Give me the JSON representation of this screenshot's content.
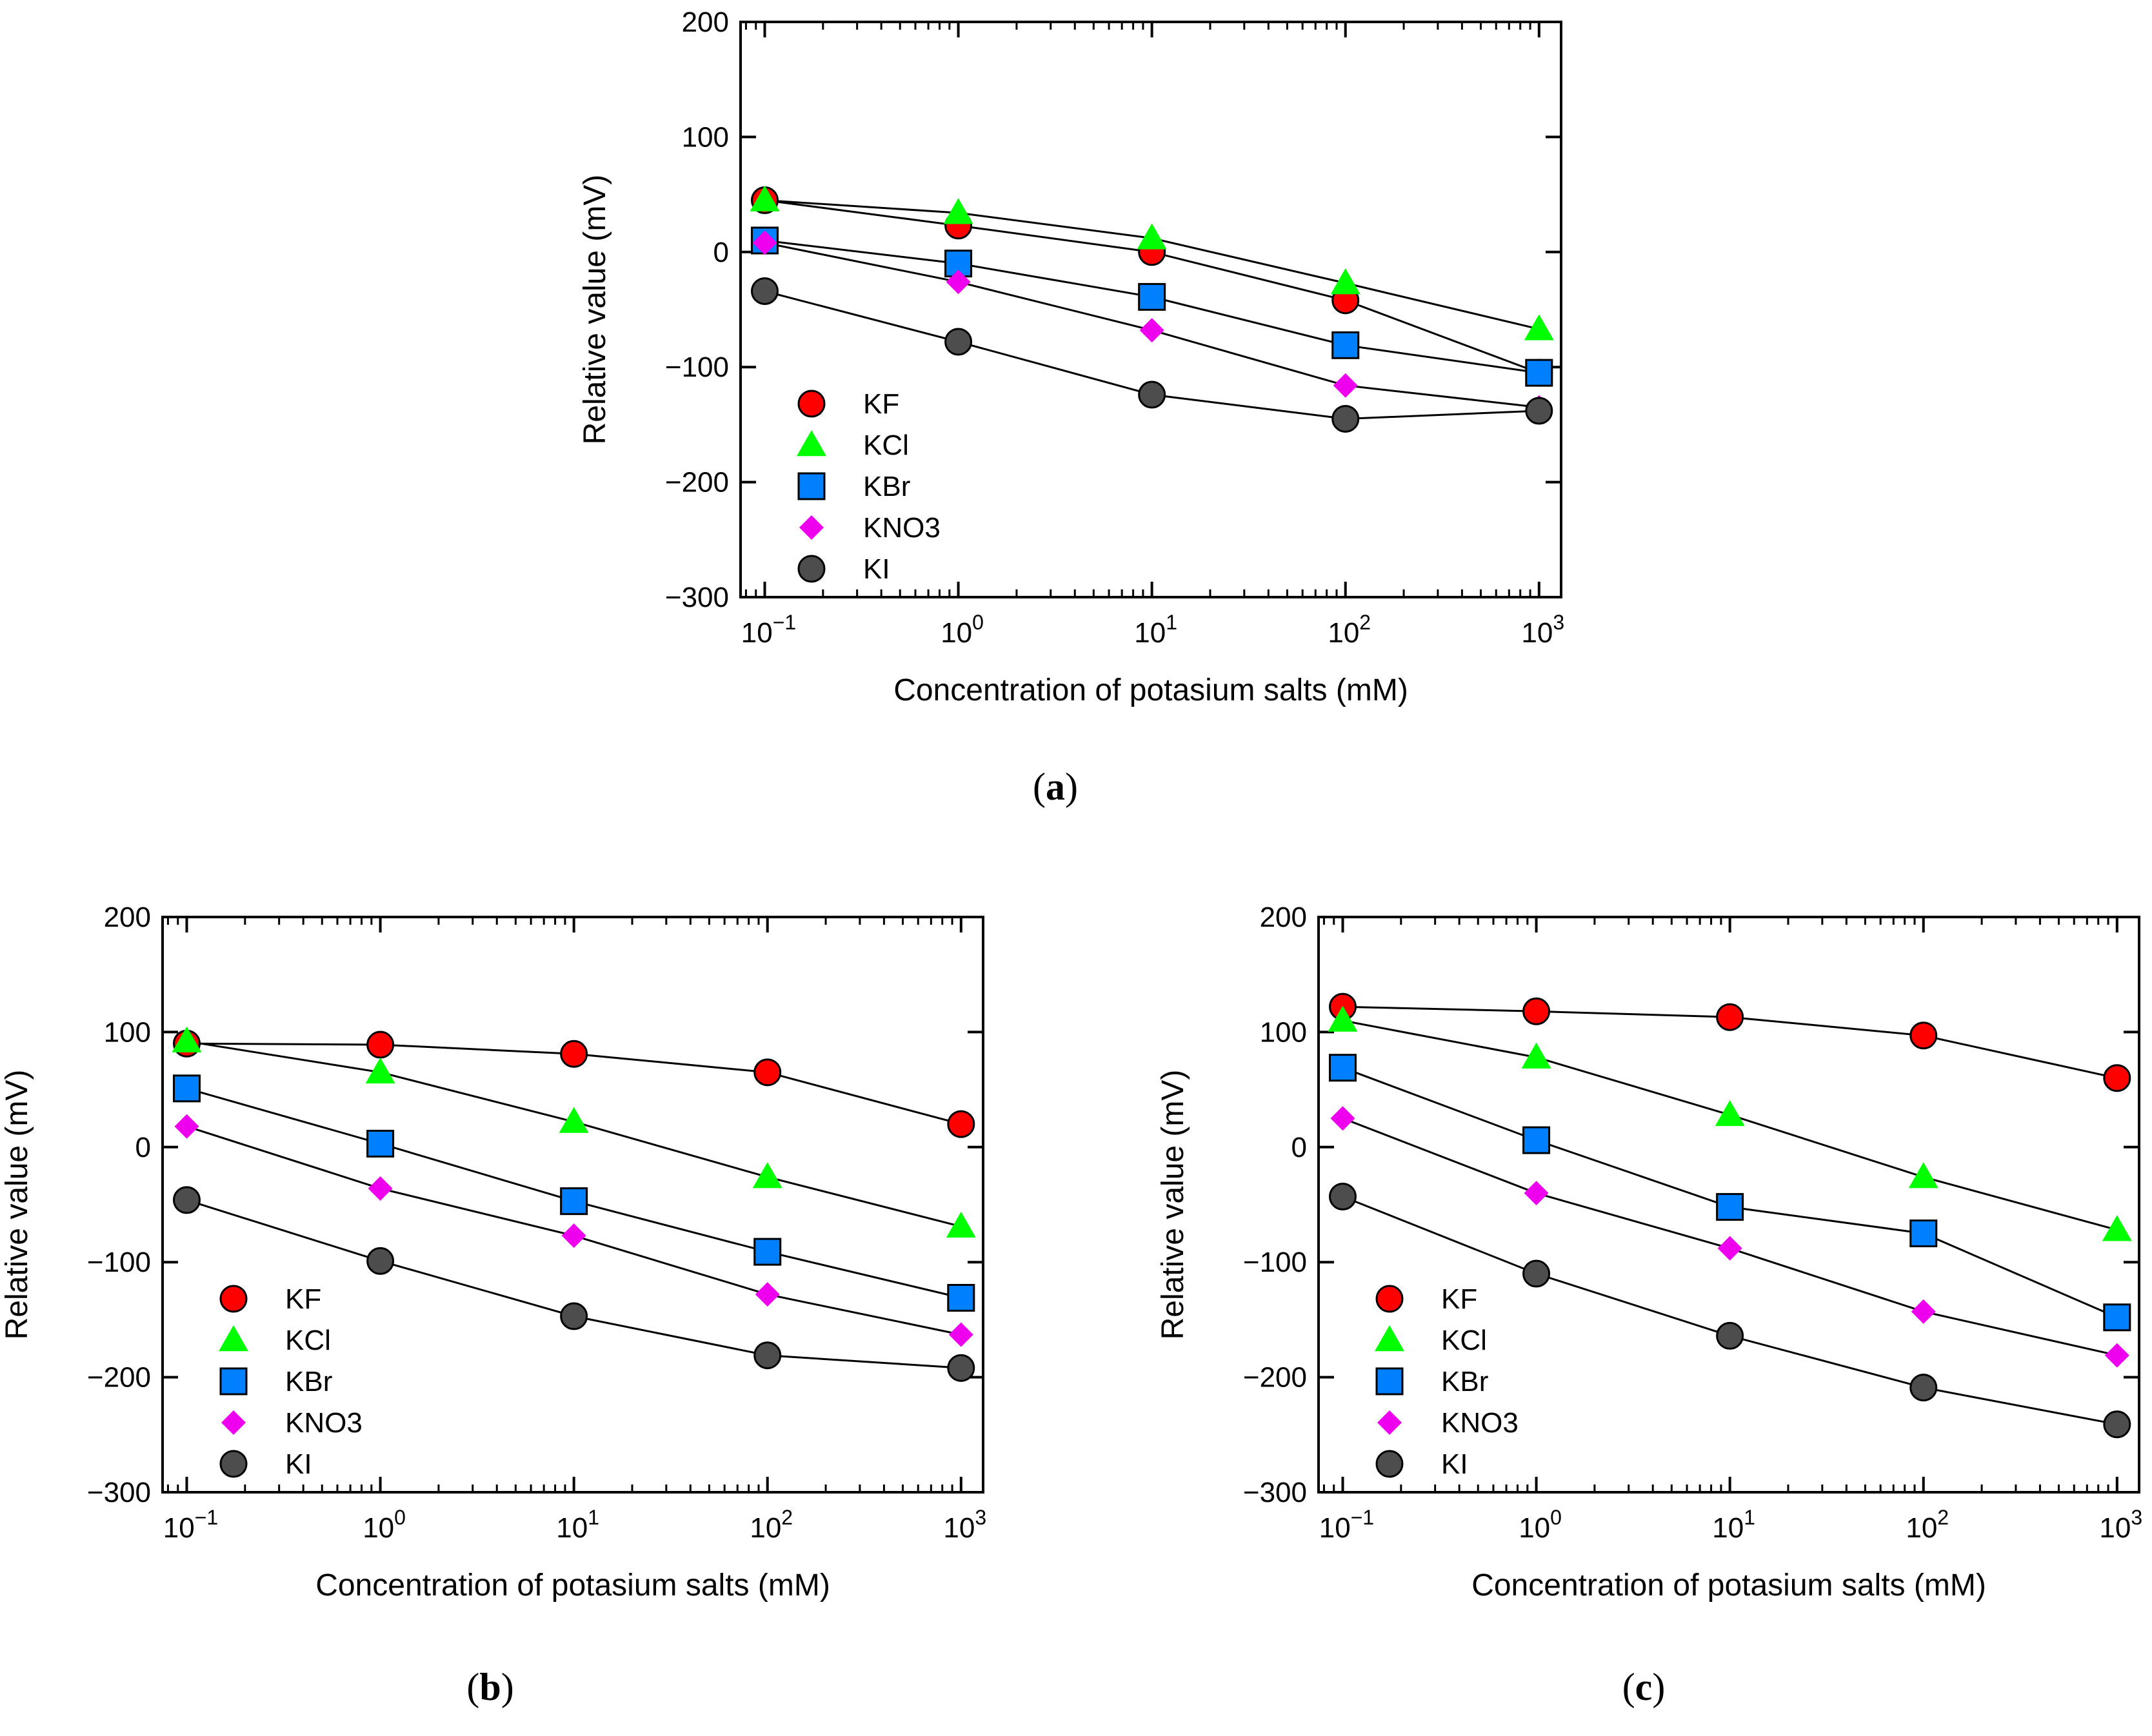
{
  "figure": {
    "panel_labels": [
      "(a)",
      "(b)",
      "(c)"
    ]
  },
  "series_styles": [
    {
      "name": "KF",
      "marker": "circle",
      "color": "#ff0000"
    },
    {
      "name": "KCl",
      "marker": "triangle",
      "color": "#00ff00"
    },
    {
      "name": "KBr",
      "marker": "square",
      "color": "#0080ff"
    },
    {
      "name": "KNO3",
      "marker": "diamond",
      "color": "#ee00ee"
    },
    {
      "name": "KI",
      "marker": "circle",
      "color": "#4d4d4d"
    }
  ],
  "chart_data": [
    {
      "type": "scatter",
      "panel": "(a)",
      "title": "",
      "xlabel": "Concentration of potasium salts (mM)",
      "ylabel": "Relative value (mV)",
      "xscale": "log",
      "x": [
        0.1,
        1,
        10,
        100,
        1000
      ],
      "x_tick_labels": [
        "10",
        "10",
        "10",
        "10",
        "10"
      ],
      "x_tick_exponents": [
        "−1",
        "0",
        "1",
        "2",
        "3"
      ],
      "xlim": [
        0.075,
        1300
      ],
      "ylim": [
        -300,
        200
      ],
      "yticks": [
        200,
        100,
        0,
        -100,
        -200,
        -300
      ],
      "y_tick_labels": [
        "200",
        "100",
        "0",
        "−100",
        "−200",
        "−300"
      ],
      "legend_position": "lower-left",
      "series": [
        {
          "name": "KF",
          "values": [
            45,
            23,
            0,
            -42,
            -105
          ]
        },
        {
          "name": "KCl",
          "values": [
            45,
            34,
            12,
            -27,
            -67
          ]
        },
        {
          "name": "KBr",
          "values": [
            10,
            -10,
            -39,
            -81,
            -105
          ]
        },
        {
          "name": "KNO3",
          "values": [
            8,
            -26,
            -68,
            -116,
            -135
          ]
        },
        {
          "name": "KI",
          "values": [
            -34,
            -78,
            -124,
            -145,
            -138
          ]
        }
      ]
    },
    {
      "type": "scatter",
      "panel": "(b)",
      "title": "",
      "xlabel": "Concentration of potasium salts (mM)",
      "ylabel": "Relative value (mV)",
      "xscale": "log",
      "x": [
        0.1,
        1,
        10,
        100,
        1000
      ],
      "x_tick_labels": [
        "10",
        "10",
        "10",
        "10",
        "10"
      ],
      "x_tick_exponents": [
        "−1",
        "0",
        "1",
        "2",
        "3"
      ],
      "xlim": [
        0.075,
        1300
      ],
      "ylim": [
        -300,
        200
      ],
      "yticks": [
        200,
        100,
        0,
        -100,
        -200,
        -300
      ],
      "y_tick_labels": [
        "200",
        "100",
        "0",
        "−100",
        "−200",
        "−300"
      ],
      "legend_position": "lower-left",
      "series": [
        {
          "name": "KF",
          "values": [
            90,
            89,
            81,
            65,
            20
          ]
        },
        {
          "name": "KCl",
          "values": [
            92,
            65,
            22,
            -26,
            -69
          ]
        },
        {
          "name": "KBr",
          "values": [
            51,
            3,
            -47,
            -91,
            -131
          ]
        },
        {
          "name": "KNO3",
          "values": [
            18,
            -36,
            -77,
            -128,
            -163
          ]
        },
        {
          "name": "KI",
          "values": [
            -46,
            -99,
            -147,
            -181,
            -192
          ]
        }
      ]
    },
    {
      "type": "scatter",
      "panel": "(c)",
      "title": "",
      "xlabel": "Concentration of potasium salts (mM)",
      "ylabel": "Relative value (mV)",
      "xscale": "log",
      "x": [
        0.1,
        1,
        10,
        100,
        1000
      ],
      "x_tick_labels": [
        "10",
        "10",
        "10",
        "10",
        "10"
      ],
      "x_tick_exponents": [
        "−1",
        "0",
        "1",
        "2",
        "3"
      ],
      "xlim": [
        0.075,
        1300
      ],
      "ylim": [
        -300,
        200
      ],
      "yticks": [
        200,
        100,
        0,
        -100,
        -200,
        -300
      ],
      "y_tick_labels": [
        "200",
        "100",
        "0",
        "−100",
        "−200",
        "−300"
      ],
      "legend_position": "lower-left",
      "series": [
        {
          "name": "KF",
          "values": [
            122,
            118,
            113,
            97,
            60
          ]
        },
        {
          "name": "KCl",
          "values": [
            110,
            78,
            28,
            -26,
            -72
          ]
        },
        {
          "name": "KBr",
          "values": [
            69,
            6,
            -52,
            -75,
            -148
          ]
        },
        {
          "name": "KNO3",
          "values": [
            25,
            -40,
            -88,
            -143,
            -181
          ]
        },
        {
          "name": "KI",
          "values": [
            -43,
            -110,
            -164,
            -209,
            -241
          ]
        }
      ]
    }
  ]
}
